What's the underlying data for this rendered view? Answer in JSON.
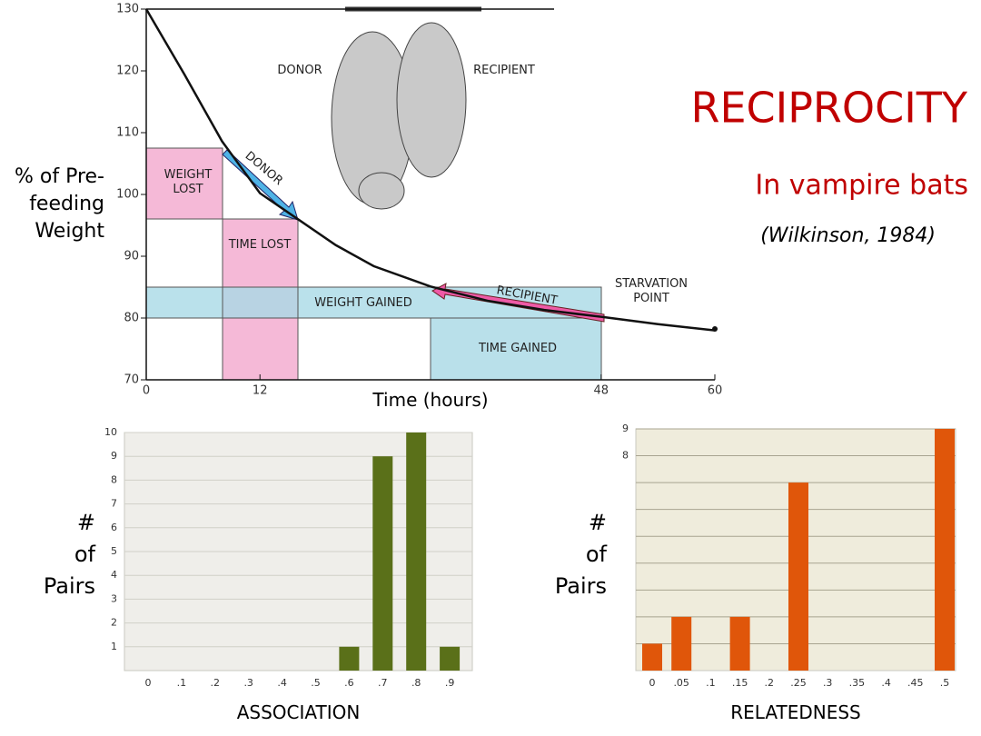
{
  "slide": {
    "title": "RECIPROCITY",
    "subtitle": "In vampire bats",
    "citation": "(Wilkinson, 1984)"
  },
  "chart_data": [
    {
      "type": "line",
      "xlabel": "Time (hours)",
      "ylabel": "% of Pre-feeding Weight",
      "x": [
        0,
        4,
        8,
        12,
        16,
        20,
        24,
        30,
        36,
        42,
        48,
        54,
        60
      ],
      "values": [
        130,
        119.5,
        108.6,
        100.2,
        96,
        91.8,
        88.4,
        85.1,
        82.8,
        81.3,
        80.2,
        79,
        78
      ],
      "color": "#111111",
      "xlim": [
        0,
        60
      ],
      "xticks": [
        0,
        12,
        48,
        60
      ],
      "ylim": [
        70,
        130
      ],
      "yticks": [
        70,
        80,
        90,
        100,
        110,
        120,
        130
      ],
      "annotations": [
        "DONOR",
        "RECIPIENT",
        "WEIGHT LOST",
        "TIME LOST",
        "WEIGHT GAINED",
        "TIME GAINED",
        "DONOR",
        "RECIPIENT",
        "STARVATION POINT"
      ]
    },
    {
      "type": "bar",
      "xlabel": "ASSOCIATION",
      "ylabel": "# of Pairs",
      "categories": [
        "0",
        ".1",
        ".2",
        ".3",
        ".4",
        ".5",
        ".6",
        ".7",
        ".8",
        ".9"
      ],
      "values": [
        0,
        0,
        0,
        0,
        0,
        0,
        1,
        9,
        10,
        1
      ],
      "color": "#5a7019",
      "background": "#efeeea",
      "ylim": [
        0,
        10
      ],
      "yticks": [
        1,
        2,
        3,
        4,
        5,
        6,
        7,
        8,
        9,
        10
      ],
      "grid": true
    },
    {
      "type": "bar",
      "xlabel": "RELATEDNESS",
      "ylabel": "# of Pairs",
      "categories": [
        "0",
        ".05",
        ".1",
        ".15",
        ".2",
        ".25",
        ".3",
        ".35",
        ".4",
        ".45",
        ".5"
      ],
      "values": [
        1,
        2,
        0,
        2,
        0,
        7,
        0,
        0,
        0,
        0,
        9
      ],
      "color": "#e0560a",
      "background": "#efecdc",
      "ylim": [
        0,
        9
      ],
      "yticks": [
        8,
        9
      ],
      "minor_yticks": [
        1,
        2,
        3,
        4,
        5,
        6,
        7
      ],
      "grid": true
    }
  ]
}
